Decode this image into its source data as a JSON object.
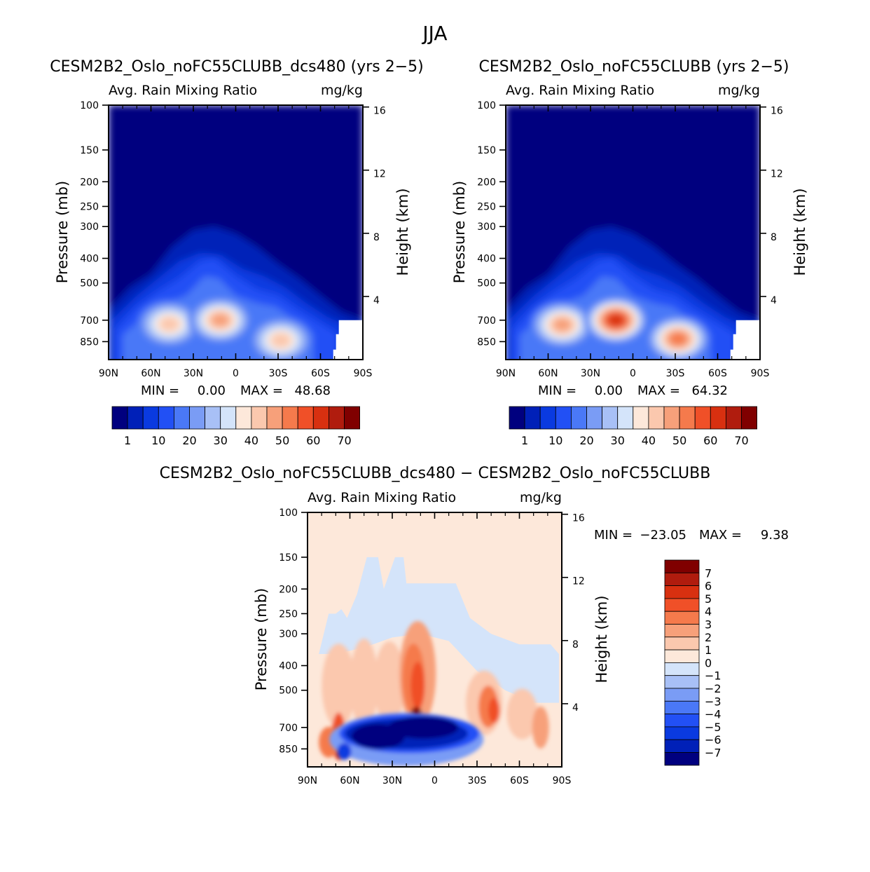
{
  "figure_title": "JJA",
  "colors": {
    "abs_palette": [
      "#00007f",
      "#0020b8",
      "#0a3ae0",
      "#2250f5",
      "#4a78f7",
      "#7a9cf5",
      "#a8c0f6",
      "#d4e4fa",
      "#fde8da",
      "#fbc8ae",
      "#f7a07a",
      "#f57a4c",
      "#f05028",
      "#d83010",
      "#b01c0e",
      "#800000"
    ],
    "diff_palette": [
      "#00007f",
      "#0020b8",
      "#0a3ae0",
      "#2250f5",
      "#4a78f7",
      "#7a9cf5",
      "#a8c0f6",
      "#d4e4fa",
      "#fde8da",
      "#fbc8ae",
      "#f7a07a",
      "#f57a4c",
      "#f05028",
      "#d83010",
      "#b01c0e",
      "#800000"
    ]
  },
  "chart_data": [
    {
      "id": "panel1",
      "type": "heatmap",
      "title": "CESM2B2_Oslo_noFC55CLUBB_dcs480 (yrs 2−5)",
      "variable": "Avg. Rain Mixing Ratio",
      "units": "mg/kg",
      "xlabel": "",
      "ylabel": "Pressure (mb)",
      "y2label": "Height (km)",
      "x_ticks": [
        "90N",
        "60N",
        "30N",
        "0",
        "30S",
        "60S",
        "90S"
      ],
      "y_ticks": [
        "100",
        "150",
        "200",
        "250",
        "300",
        "400",
        "500",
        "700",
        "850"
      ],
      "y2_ticks": [
        "16",
        "12",
        "8",
        "4"
      ],
      "min_label": "MIN =",
      "min_value": "0.00",
      "max_label": "MAX =",
      "max_value": "48.68",
      "colorbar_labels": [
        "1",
        "10",
        "20",
        "30",
        "40",
        "50",
        "60",
        "70"
      ],
      "levels": [
        1,
        5,
        10,
        15,
        20,
        25,
        30,
        35,
        40,
        45,
        50,
        55,
        60,
        65,
        70
      ],
      "features": [
        {
          "lat": 47,
          "p": 725,
          "peak": 42
        },
        {
          "lat": 11,
          "p": 700,
          "peak": 46
        },
        {
          "lat": -32,
          "p": 840,
          "peak": 44
        },
        {
          "lat": 20,
          "p": 400,
          "peak": 12
        }
      ]
    },
    {
      "id": "panel2",
      "type": "heatmap",
      "title": "CESM2B2_Oslo_noFC55CLUBB (yrs 2−5)",
      "variable": "Avg. Rain Mixing Ratio",
      "units": "mg/kg",
      "xlabel": "",
      "ylabel": "Pressure (mb)",
      "y2label": "Height (km)",
      "x_ticks": [
        "90N",
        "60N",
        "30N",
        "0",
        "30S",
        "60S",
        "90S"
      ],
      "y_ticks": [
        "100",
        "150",
        "200",
        "250",
        "300",
        "400",
        "500",
        "700",
        "850"
      ],
      "y2_ticks": [
        "16",
        "12",
        "8",
        "4"
      ],
      "min_label": "MIN =",
      "min_value": "0.00",
      "max_label": "MAX =",
      "max_value": "64.32",
      "colorbar_labels": [
        "1",
        "10",
        "20",
        "30",
        "40",
        "50",
        "60",
        "70"
      ],
      "levels": [
        1,
        5,
        10,
        15,
        20,
        25,
        30,
        35,
        40,
        45,
        50,
        55,
        60,
        65,
        70
      ],
      "features": [
        {
          "lat": 50,
          "p": 730,
          "peak": 45
        },
        {
          "lat": 12,
          "p": 700,
          "peak": 64
        },
        {
          "lat": -32,
          "p": 830,
          "peak": 52
        },
        {
          "lat": 22,
          "p": 420,
          "peak": 12
        }
      ]
    },
    {
      "id": "panel3",
      "type": "heatmap",
      "title": "CESM2B2_Oslo_noFC55CLUBB_dcs480 − CESM2B2_Oslo_noFC55CLUBB",
      "variable": "Avg. Rain Mixing Ratio",
      "units": "mg/kg",
      "xlabel": "",
      "ylabel": "Pressure (mb)",
      "y2label": "Height (km)",
      "x_ticks": [
        "90N",
        "60N",
        "30N",
        "0",
        "30S",
        "60S",
        "90S"
      ],
      "y_ticks": [
        "100",
        "150",
        "200",
        "250",
        "300",
        "400",
        "500",
        "700",
        "850"
      ],
      "y2_ticks": [
        "16",
        "12",
        "8",
        "4"
      ],
      "min_label": "MIN =",
      "min_value": "−23.05",
      "max_label": "MAX =",
      "max_value": "9.38",
      "colorbar_labels": [
        "7",
        "6",
        "5",
        "4",
        "3",
        "2",
        "1",
        "0",
        "−1",
        "−2",
        "−3",
        "−4",
        "−5",
        "−6",
        "−7"
      ],
      "levels": [
        -7,
        -6,
        -5,
        -4,
        -3,
        -2,
        -1,
        0,
        1,
        2,
        3,
        4,
        5,
        6,
        7
      ]
    }
  ]
}
